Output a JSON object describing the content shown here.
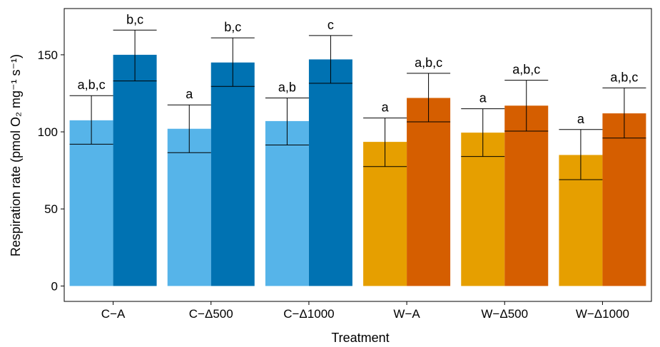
{
  "chart_data": {
    "type": "bar",
    "xlabel": "Treatment",
    "ylabel": "Respiration rate (pmol O₂ mg⁻¹ s⁻¹)",
    "ylim": [
      -10,
      180
    ],
    "yticks": [
      0,
      50,
      100,
      150
    ],
    "grid": false,
    "legend": "none",
    "categories": [
      "C−A",
      "C−Δ500",
      "C−Δ1000",
      "W−A",
      "W−Δ500",
      "W−Δ1000"
    ],
    "series": [
      {
        "values": [
          107.5,
          102,
          107,
          93.5,
          99.5,
          85
        ],
        "error_low": [
          92,
          86.5,
          91.5,
          77.5,
          84,
          69
        ],
        "error_high": [
          123.5,
          117.5,
          122,
          109,
          115,
          101.5
        ],
        "colors": [
          "#56B4E9",
          "#56B4E9",
          "#56B4E9",
          "#E69F00",
          "#E69F00",
          "#E69F00"
        ],
        "sig_labels": [
          "a,b,c",
          "a",
          "a,b",
          "a",
          "a",
          "a"
        ]
      },
      {
        "values": [
          150,
          145,
          147,
          122,
          117,
          112
        ],
        "error_low": [
          133,
          129.5,
          131.5,
          106.5,
          100.5,
          96
        ],
        "error_high": [
          166,
          161,
          162.5,
          138,
          133.5,
          128.5
        ],
        "colors": [
          "#0072B2",
          "#0072B2",
          "#0072B2",
          "#D55E00",
          "#D55E00",
          "#D55E00"
        ],
        "sig_labels": [
          "b,c",
          "b,c",
          "c",
          "a,b,c",
          "a,b,c",
          "a,b,c"
        ]
      }
    ]
  }
}
